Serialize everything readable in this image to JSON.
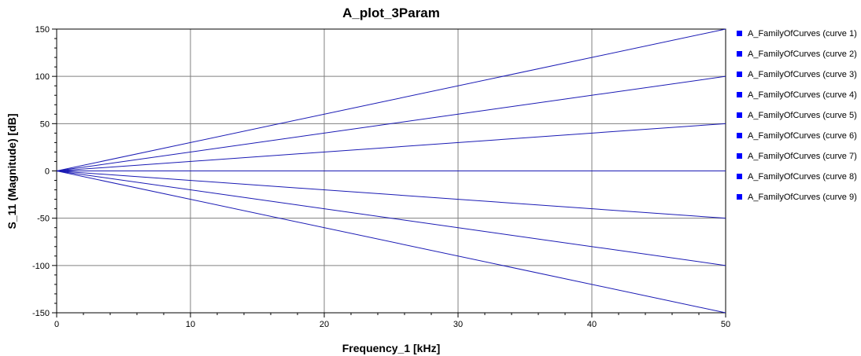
{
  "chart_data": {
    "type": "line",
    "title": "A_plot_3Param",
    "xlabel": "Frequency_1 [kHz]",
    "ylabel": "S_11 (Magnitude) [dB]",
    "xlim": [
      0,
      50
    ],
    "ylim": [
      -150,
      150
    ],
    "x_ticks": [
      "0",
      "10",
      "20",
      "30",
      "40",
      "50"
    ],
    "y_ticks": [
      "150",
      "100",
      "50",
      "0",
      "-50",
      "-100",
      "-150"
    ],
    "grid": true,
    "legend_position": "right",
    "line_color": "#1a1ab4",
    "marker_color": "#0000ff",
    "x": [
      0,
      50
    ],
    "series": [
      {
        "name": "A_FamilyOfCurves (curve 1)",
        "values": [
          0,
          150
        ]
      },
      {
        "name": "A_FamilyOfCurves (curve 2)",
        "values": [
          0,
          100
        ]
      },
      {
        "name": "A_FamilyOfCurves (curve 3)",
        "values": [
          0,
          50
        ]
      },
      {
        "name": "A_FamilyOfCurves (curve 4)",
        "values": [
          0,
          -50
        ]
      },
      {
        "name": "A_FamilyOfCurves (curve 5)",
        "values": [
          0,
          -100
        ]
      },
      {
        "name": "A_FamilyOfCurves (curve 6)",
        "values": [
          0,
          -150
        ]
      },
      {
        "name": "A_FamilyOfCurves (curve 7)",
        "values": [
          0,
          0
        ]
      },
      {
        "name": "A_FamilyOfCurves (curve 8)",
        "values": [
          0,
          0
        ]
      },
      {
        "name": "A_FamilyOfCurves (curve 9)",
        "values": [
          0,
          0
        ]
      }
    ]
  }
}
